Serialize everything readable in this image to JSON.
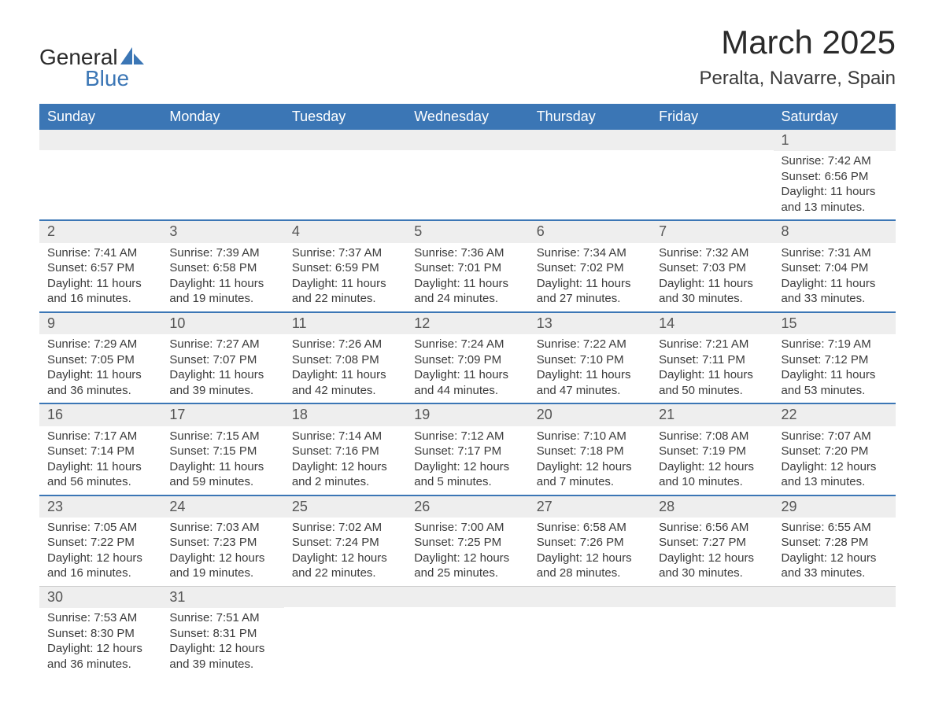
{
  "logo": {
    "word1": "General",
    "word2": "Blue"
  },
  "title": "March 2025",
  "subtitle": "Peralta, Navarre, Spain",
  "colors": {
    "header_bg": "#3b76b5",
    "header_fg": "#ffffff",
    "daynum_bg": "#eeeeee",
    "row_border": "#3b76b5",
    "text": "#3a3a3a",
    "logo_blue": "#3b76b5"
  },
  "fonts": {
    "title_pt": 42,
    "subtitle_pt": 24,
    "header_pt": 18,
    "body_pt": 15
  },
  "days_of_week": [
    "Sunday",
    "Monday",
    "Tuesday",
    "Wednesday",
    "Thursday",
    "Friday",
    "Saturday"
  ],
  "weeks": [
    [
      null,
      null,
      null,
      null,
      null,
      null,
      {
        "n": "1",
        "sr": "Sunrise: 7:42 AM",
        "ss": "Sunset: 6:56 PM",
        "d1": "Daylight: 11 hours",
        "d2": "and 13 minutes."
      }
    ],
    [
      {
        "n": "2",
        "sr": "Sunrise: 7:41 AM",
        "ss": "Sunset: 6:57 PM",
        "d1": "Daylight: 11 hours",
        "d2": "and 16 minutes."
      },
      {
        "n": "3",
        "sr": "Sunrise: 7:39 AM",
        "ss": "Sunset: 6:58 PM",
        "d1": "Daylight: 11 hours",
        "d2": "and 19 minutes."
      },
      {
        "n": "4",
        "sr": "Sunrise: 7:37 AM",
        "ss": "Sunset: 6:59 PM",
        "d1": "Daylight: 11 hours",
        "d2": "and 22 minutes."
      },
      {
        "n": "5",
        "sr": "Sunrise: 7:36 AM",
        "ss": "Sunset: 7:01 PM",
        "d1": "Daylight: 11 hours",
        "d2": "and 24 minutes."
      },
      {
        "n": "6",
        "sr": "Sunrise: 7:34 AM",
        "ss": "Sunset: 7:02 PM",
        "d1": "Daylight: 11 hours",
        "d2": "and 27 minutes."
      },
      {
        "n": "7",
        "sr": "Sunrise: 7:32 AM",
        "ss": "Sunset: 7:03 PM",
        "d1": "Daylight: 11 hours",
        "d2": "and 30 minutes."
      },
      {
        "n": "8",
        "sr": "Sunrise: 7:31 AM",
        "ss": "Sunset: 7:04 PM",
        "d1": "Daylight: 11 hours",
        "d2": "and 33 minutes."
      }
    ],
    [
      {
        "n": "9",
        "sr": "Sunrise: 7:29 AM",
        "ss": "Sunset: 7:05 PM",
        "d1": "Daylight: 11 hours",
        "d2": "and 36 minutes."
      },
      {
        "n": "10",
        "sr": "Sunrise: 7:27 AM",
        "ss": "Sunset: 7:07 PM",
        "d1": "Daylight: 11 hours",
        "d2": "and 39 minutes."
      },
      {
        "n": "11",
        "sr": "Sunrise: 7:26 AM",
        "ss": "Sunset: 7:08 PM",
        "d1": "Daylight: 11 hours",
        "d2": "and 42 minutes."
      },
      {
        "n": "12",
        "sr": "Sunrise: 7:24 AM",
        "ss": "Sunset: 7:09 PM",
        "d1": "Daylight: 11 hours",
        "d2": "and 44 minutes."
      },
      {
        "n": "13",
        "sr": "Sunrise: 7:22 AM",
        "ss": "Sunset: 7:10 PM",
        "d1": "Daylight: 11 hours",
        "d2": "and 47 minutes."
      },
      {
        "n": "14",
        "sr": "Sunrise: 7:21 AM",
        "ss": "Sunset: 7:11 PM",
        "d1": "Daylight: 11 hours",
        "d2": "and 50 minutes."
      },
      {
        "n": "15",
        "sr": "Sunrise: 7:19 AM",
        "ss": "Sunset: 7:12 PM",
        "d1": "Daylight: 11 hours",
        "d2": "and 53 minutes."
      }
    ],
    [
      {
        "n": "16",
        "sr": "Sunrise: 7:17 AM",
        "ss": "Sunset: 7:14 PM",
        "d1": "Daylight: 11 hours",
        "d2": "and 56 minutes."
      },
      {
        "n": "17",
        "sr": "Sunrise: 7:15 AM",
        "ss": "Sunset: 7:15 PM",
        "d1": "Daylight: 11 hours",
        "d2": "and 59 minutes."
      },
      {
        "n": "18",
        "sr": "Sunrise: 7:14 AM",
        "ss": "Sunset: 7:16 PM",
        "d1": "Daylight: 12 hours",
        "d2": "and 2 minutes."
      },
      {
        "n": "19",
        "sr": "Sunrise: 7:12 AM",
        "ss": "Sunset: 7:17 PM",
        "d1": "Daylight: 12 hours",
        "d2": "and 5 minutes."
      },
      {
        "n": "20",
        "sr": "Sunrise: 7:10 AM",
        "ss": "Sunset: 7:18 PM",
        "d1": "Daylight: 12 hours",
        "d2": "and 7 minutes."
      },
      {
        "n": "21",
        "sr": "Sunrise: 7:08 AM",
        "ss": "Sunset: 7:19 PM",
        "d1": "Daylight: 12 hours",
        "d2": "and 10 minutes."
      },
      {
        "n": "22",
        "sr": "Sunrise: 7:07 AM",
        "ss": "Sunset: 7:20 PM",
        "d1": "Daylight: 12 hours",
        "d2": "and 13 minutes."
      }
    ],
    [
      {
        "n": "23",
        "sr": "Sunrise: 7:05 AM",
        "ss": "Sunset: 7:22 PM",
        "d1": "Daylight: 12 hours",
        "d2": "and 16 minutes."
      },
      {
        "n": "24",
        "sr": "Sunrise: 7:03 AM",
        "ss": "Sunset: 7:23 PM",
        "d1": "Daylight: 12 hours",
        "d2": "and 19 minutes."
      },
      {
        "n": "25",
        "sr": "Sunrise: 7:02 AM",
        "ss": "Sunset: 7:24 PM",
        "d1": "Daylight: 12 hours",
        "d2": "and 22 minutes."
      },
      {
        "n": "26",
        "sr": "Sunrise: 7:00 AM",
        "ss": "Sunset: 7:25 PM",
        "d1": "Daylight: 12 hours",
        "d2": "and 25 minutes."
      },
      {
        "n": "27",
        "sr": "Sunrise: 6:58 AM",
        "ss": "Sunset: 7:26 PM",
        "d1": "Daylight: 12 hours",
        "d2": "and 28 minutes."
      },
      {
        "n": "28",
        "sr": "Sunrise: 6:56 AM",
        "ss": "Sunset: 7:27 PM",
        "d1": "Daylight: 12 hours",
        "d2": "and 30 minutes."
      },
      {
        "n": "29",
        "sr": "Sunrise: 6:55 AM",
        "ss": "Sunset: 7:28 PM",
        "d1": "Daylight: 12 hours",
        "d2": "and 33 minutes."
      }
    ],
    [
      {
        "n": "30",
        "sr": "Sunrise: 7:53 AM",
        "ss": "Sunset: 8:30 PM",
        "d1": "Daylight: 12 hours",
        "d2": "and 36 minutes."
      },
      {
        "n": "31",
        "sr": "Sunrise: 7:51 AM",
        "ss": "Sunset: 8:31 PM",
        "d1": "Daylight: 12 hours",
        "d2": "and 39 minutes."
      },
      null,
      null,
      null,
      null,
      null
    ]
  ]
}
